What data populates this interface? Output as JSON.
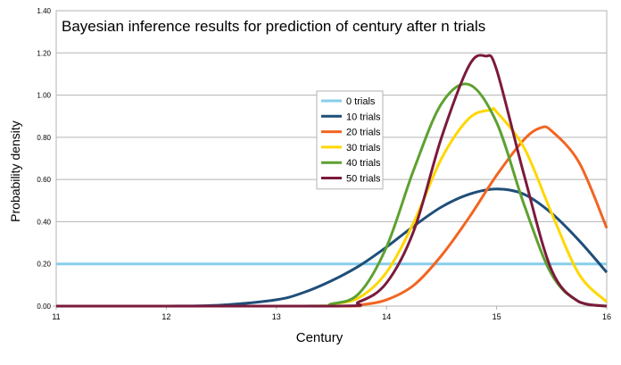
{
  "chart_data": {
    "type": "line",
    "title": "Bayesian inference results for prediction of century after n trials",
    "xlabel": "Century",
    "ylabel": "Probability density",
    "xlim": [
      11,
      16
    ],
    "ylim": [
      0,
      1.4
    ],
    "x_ticks": [
      "11",
      "12",
      "13",
      "14",
      "15",
      "16"
    ],
    "y_ticks": [
      "0.00",
      "0.20",
      "0.40",
      "0.60",
      "0.80",
      "1.00",
      "1.20",
      "1.40"
    ],
    "grid": "horizontal",
    "legend_position": "center",
    "series": [
      {
        "name": "0 trials",
        "color": "#87CEEB",
        "x": [
          11,
          16
        ],
        "y": [
          0.2,
          0.2
        ]
      },
      {
        "name": "10 trials",
        "color": "#1F4E79",
        "x": [
          11,
          12,
          12.5,
          13,
          13.25,
          13.5,
          13.75,
          14,
          14.25,
          14.5,
          14.75,
          15,
          15.25,
          15.5,
          15.75,
          16
        ],
        "y": [
          0.0,
          0.0,
          0.005,
          0.03,
          0.065,
          0.12,
          0.19,
          0.28,
          0.38,
          0.47,
          0.53,
          0.555,
          0.53,
          0.44,
          0.31,
          0.16
        ]
      },
      {
        "name": "20 trials",
        "color": "#F26522",
        "x": [
          11,
          13.5,
          13.75,
          14,
          14.25,
          14.5,
          14.75,
          15,
          15.25,
          15.4,
          15.5,
          15.75,
          16
        ],
        "y": [
          0.0,
          0.0,
          0.005,
          0.03,
          0.1,
          0.24,
          0.42,
          0.62,
          0.79,
          0.845,
          0.83,
          0.68,
          0.37
        ]
      },
      {
        "name": "30 trials",
        "color": "#FFD700",
        "x": [
          11,
          13.25,
          13.5,
          13.75,
          14,
          14.25,
          14.5,
          14.75,
          14.95,
          15,
          15.25,
          15.5,
          15.75,
          16
        ],
        "y": [
          0.0,
          0.0,
          0.01,
          0.04,
          0.16,
          0.4,
          0.7,
          0.89,
          0.93,
          0.92,
          0.75,
          0.44,
          0.15,
          0.02
        ]
      },
      {
        "name": "40 trials",
        "color": "#5DA130",
        "x": [
          11,
          13.25,
          13.5,
          13.75,
          14,
          14.25,
          14.5,
          14.75,
          15,
          15.25,
          15.5,
          15.75,
          16
        ],
        "y": [
          0.0,
          0.0,
          0.01,
          0.06,
          0.28,
          0.65,
          0.96,
          1.05,
          0.87,
          0.48,
          0.15,
          0.02,
          0.0
        ]
      },
      {
        "name": "50 trials",
        "color": "#7B1A3C",
        "x": [
          11,
          13.5,
          13.75,
          14,
          14.25,
          14.5,
          14.75,
          14.9,
          15,
          15.25,
          15.5,
          15.75,
          16
        ],
        "y": [
          0.0,
          0.0,
          0.02,
          0.11,
          0.36,
          0.8,
          1.14,
          1.185,
          1.12,
          0.62,
          0.17,
          0.02,
          0.0
        ]
      }
    ]
  }
}
